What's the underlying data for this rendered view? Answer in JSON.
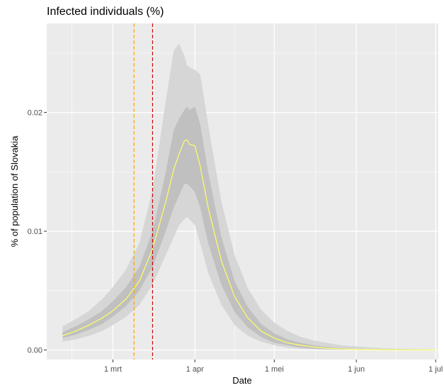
{
  "chart_data": {
    "type": "line",
    "title": "Infected individuals (%)",
    "xlabel": "Date",
    "ylabel": "% of population of Slovakia",
    "x_axis_type": "date",
    "xlim": [
      "2020-02-05",
      "2020-07-02"
    ],
    "ylim": [
      -0.0008,
      0.0275
    ],
    "x_ticks": [
      {
        "date": "2020-03-01",
        "label": "1 mrt"
      },
      {
        "date": "2020-04-01",
        "label": "1 apr"
      },
      {
        "date": "2020-05-01",
        "label": "1 mei"
      },
      {
        "date": "2020-06-01",
        "label": "1 jun"
      },
      {
        "date": "2020-07-01",
        "label": "1 jul"
      }
    ],
    "y_ticks": [
      {
        "value": 0.0,
        "label": "0.00"
      },
      {
        "value": 0.01,
        "label": "0.01"
      },
      {
        "value": 0.02,
        "label": "0.02"
      }
    ],
    "grid": true,
    "vertical_lines": [
      {
        "date": "2020-03-09",
        "color": "#ffa500",
        "style": "dashed"
      },
      {
        "date": "2020-03-16",
        "color": "#cc0000",
        "style": "dashed"
      }
    ],
    "x": [
      "2020-02-11",
      "2020-02-16",
      "2020-02-21",
      "2020-02-26",
      "2020-03-01",
      "2020-03-06",
      "2020-03-11",
      "2020-03-16",
      "2020-03-21",
      "2020-03-24",
      "2020-03-26",
      "2020-03-28",
      "2020-03-29",
      "2020-03-30",
      "2020-04-01",
      "2020-04-03",
      "2020-04-06",
      "2020-04-11",
      "2020-04-16",
      "2020-04-21",
      "2020-04-26",
      "2020-05-01",
      "2020-05-06",
      "2020-05-11",
      "2020-05-16",
      "2020-05-21",
      "2020-05-26",
      "2020-06-01",
      "2020-06-11",
      "2020-06-21",
      "2020-07-01"
    ],
    "series": [
      {
        "line_color": "#ffff66",
        "median": [
          0.0012,
          0.0016,
          0.0021,
          0.0027,
          0.0033,
          0.0043,
          0.0058,
          0.0085,
          0.0125,
          0.0152,
          0.0165,
          0.0176,
          0.0177,
          0.0173,
          0.0172,
          0.0155,
          0.012,
          0.0075,
          0.0045,
          0.0027,
          0.0016,
          0.001,
          0.0006,
          0.0004,
          0.00025,
          0.00015,
          0.0001,
          5e-05,
          2e-05,
          1e-05,
          5e-06
        ],
        "inner_band_low": [
          0.001,
          0.0013,
          0.0017,
          0.0022,
          0.0028,
          0.0037,
          0.005,
          0.007,
          0.01,
          0.012,
          0.013,
          0.014,
          0.014,
          0.0138,
          0.0133,
          0.012,
          0.009,
          0.0055,
          0.0032,
          0.0019,
          0.0011,
          0.0006,
          0.0004,
          0.0002,
          0.00012,
          7e-05,
          4e-05,
          2e-05,
          1e-05,
          0.0,
          0.0
        ],
        "inner_band_high": [
          0.0015,
          0.002,
          0.0026,
          0.0033,
          0.0041,
          0.0053,
          0.007,
          0.01,
          0.015,
          0.0185,
          0.0195,
          0.0202,
          0.0205,
          0.0202,
          0.0205,
          0.019,
          0.015,
          0.0095,
          0.0058,
          0.0036,
          0.0022,
          0.0014,
          0.0009,
          0.0006,
          0.0004,
          0.00025,
          0.00016,
          0.0001,
          4e-05,
          2e-05,
          1e-05
        ],
        "outer_band_low": [
          0.0007,
          0.0009,
          0.0012,
          0.0016,
          0.0021,
          0.0028,
          0.0038,
          0.0055,
          0.008,
          0.0095,
          0.0105,
          0.011,
          0.0112,
          0.011,
          0.0105,
          0.009,
          0.0065,
          0.0038,
          0.0021,
          0.0012,
          0.0007,
          0.0004,
          0.0002,
          0.0001,
          6e-05,
          3e-05,
          2e-05,
          1e-05,
          0.0,
          0.0,
          0.0
        ],
        "outer_band_high": [
          0.002,
          0.0026,
          0.0033,
          0.0043,
          0.0053,
          0.0068,
          0.009,
          0.0135,
          0.021,
          0.0252,
          0.0258,
          0.0248,
          0.024,
          0.0238,
          0.0236,
          0.0232,
          0.019,
          0.0125,
          0.008,
          0.0052,
          0.0034,
          0.0023,
          0.0016,
          0.0011,
          0.0008,
          0.0006,
          0.0004,
          0.0003,
          0.00015,
          8e-05,
          4e-05
        ]
      }
    ]
  }
}
